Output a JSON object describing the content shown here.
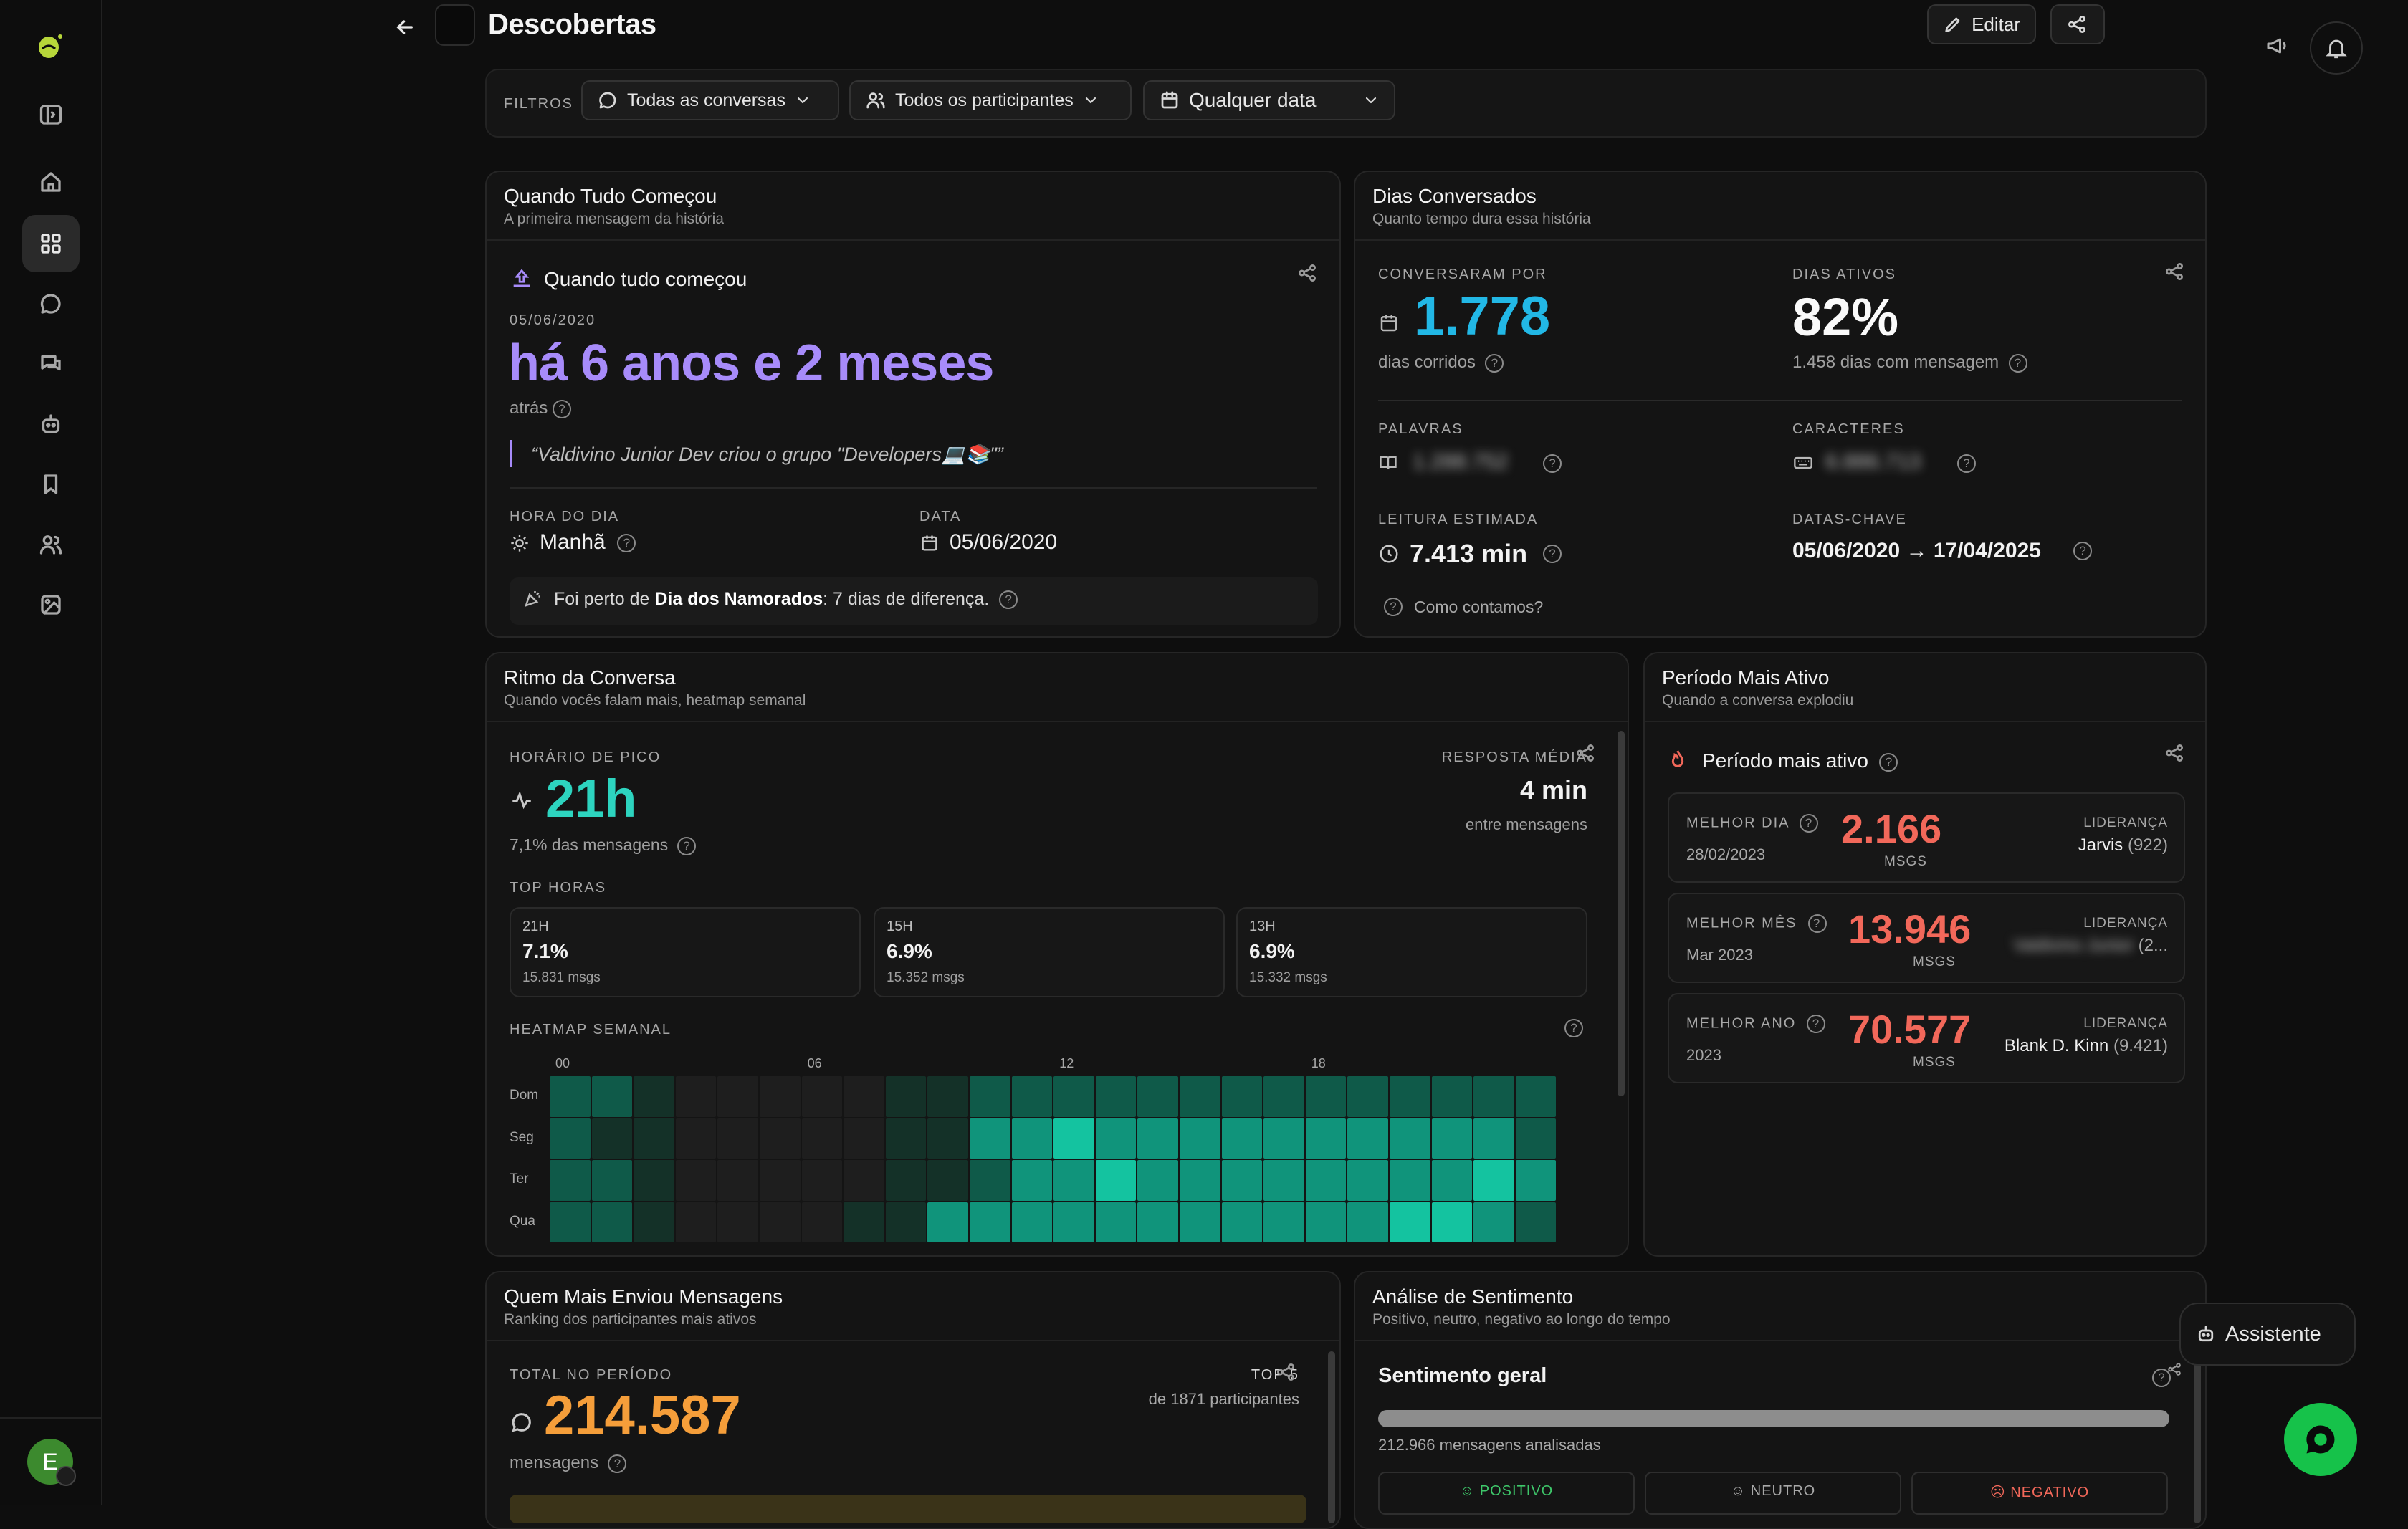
{
  "page": {
    "title": "Descobertas",
    "edit_label": "Editar"
  },
  "filters": {
    "label": "FILTROS",
    "conversations": "Todas as conversas",
    "participants": "Todos os participantes",
    "date": "Qualquer data"
  },
  "sidebar": {
    "avatar_letter": "E"
  },
  "assistant": {
    "label": "Assistente"
  },
  "first": {
    "title": "Quando Tudo Começou",
    "subtitle": "A primeira mensagem da história",
    "heading": "Quando tudo começou",
    "date": "05/06/2020",
    "ago": "há 6 anos e 2 meses",
    "ago_suffix": "atrás",
    "quote": "“Valdivino Junior Dev criou o grupo \"Developers💻📚\"”",
    "hour_label": "HORA DO DIA",
    "hour_value": "Manhã",
    "date_label": "DATA",
    "date_value": "05/06/2020",
    "note_prefix": "Foi perto de ",
    "note_bold": "Dia dos Namorados",
    "note_suffix": ": 7 dias de diferença."
  },
  "days": {
    "title": "Dias Conversados",
    "subtitle": "Quanto tempo dura essa história",
    "talked_label": "CONVERSARAM POR",
    "talked_value": "1.778",
    "talked_unit": "dias corridos",
    "active_label": "DIAS ATIVOS",
    "active_value": "82%",
    "active_sub": "1.458 dias com mensagem",
    "words_label": "PALAVRAS",
    "words_value": "1.288.752",
    "chars_label": "CARACTERES",
    "chars_value": "6.886.713",
    "reading_label": "LEITURA ESTIMADA",
    "reading_value": "7.413 min",
    "keydates_label": "DATAS-CHAVE",
    "keydates_value": "05/06/2020 → 17/04/2025",
    "how": "Como contamos?"
  },
  "rhythm": {
    "title": "Ritmo da Conversa",
    "subtitle": "Quando vocês falam mais, heatmap semanal",
    "peak_label": "HORÁRIO DE PICO",
    "peak_value": "21h",
    "peak_sub": "7,1% das mensagens",
    "avg_label": "RESPOSTA MÉDIA",
    "avg_value": "4 min",
    "avg_sub": "entre mensagens",
    "top_label": "TOP HORAS",
    "top_hours": [
      {
        "hour": "21H",
        "pct": "7.1%",
        "msgs": "15.831 msgs"
      },
      {
        "hour": "15H",
        "pct": "6.9%",
        "msgs": "15.352 msgs"
      },
      {
        "hour": "13H",
        "pct": "6.9%",
        "msgs": "15.332 msgs"
      }
    ],
    "heatmap_label": "HEATMAP SEMANAL",
    "hour_ticks": [
      "00",
      "06",
      "12",
      "18"
    ],
    "days": [
      "Dom",
      "Seg",
      "Ter",
      "Qua"
    ],
    "heat_levels": [
      [
        2,
        2,
        1,
        0,
        0,
        0,
        0,
        0,
        1,
        1,
        2,
        2,
        2,
        2,
        2,
        2,
        2,
        2,
        2,
        2,
        2,
        2,
        2,
        2
      ],
      [
        2,
        1,
        1,
        0,
        0,
        0,
        0,
        0,
        1,
        1,
        3,
        3,
        4,
        3,
        3,
        3,
        3,
        3,
        3,
        3,
        3,
        3,
        3,
        2
      ],
      [
        2,
        2,
        1,
        0,
        0,
        0,
        0,
        0,
        1,
        1,
        2,
        3,
        3,
        4,
        3,
        3,
        3,
        3,
        3,
        3,
        3,
        3,
        4,
        3
      ],
      [
        2,
        2,
        1,
        0,
        0,
        0,
        0,
        1,
        1,
        3,
        3,
        3,
        3,
        3,
        3,
        3,
        3,
        3,
        3,
        3,
        4,
        4,
        3,
        2
      ]
    ],
    "heat_colors": [
      "#1e1e1e",
      "#143128",
      "#0f5a49",
      "#10947b",
      "#14c3a0"
    ]
  },
  "active": {
    "title": "Período Mais Ativo",
    "subtitle": "Quando a conversa explodiu",
    "heading": "Período mais ativo",
    "rows": [
      {
        "label": "MELHOR DIA",
        "period": "28/02/2023",
        "value": "2.166",
        "unit": "MSGS",
        "lead_label": "LIDERANÇA",
        "leader": "Jarvis",
        "count": "(922)"
      },
      {
        "label": "MELHOR MÊS",
        "period": "Mar 2023",
        "value": "13.946",
        "unit": "MSGS",
        "lead_label": "LIDERANÇA",
        "leader": "Valdivino Junior",
        "count": "(2..."
      },
      {
        "label": "MELHOR ANO",
        "period": "2023",
        "value": "70.577",
        "unit": "MSGS",
        "lead_label": "LIDERANÇA",
        "leader": "Blank D. Kinn",
        "count": "(9.421)"
      }
    ]
  },
  "senders": {
    "title": "Quem Mais Enviou Mensagens",
    "subtitle": "Ranking dos participantes mais ativos",
    "total_label": "TOTAL NO PERÍODO",
    "total_value": "214.587",
    "total_unit": "mensagens",
    "top_label": "TOP 5",
    "top_sub": "de 1871 participantes"
  },
  "sentiment": {
    "title": "Análise de Sentimento",
    "subtitle": "Positivo, neutro, negativo ao longo do tempo",
    "heading": "Sentimento geral",
    "analyzed": "212.966 mensagens analisadas",
    "positive": "POSITIVO",
    "neutral": "NEUTRO",
    "negative": "NEGATIVO"
  },
  "colors": {
    "accent_purple": "#a78bfa",
    "accent_cyan": "#22b8e6",
    "accent_teal": "#2dd4bf",
    "accent_red": "#f2685a",
    "accent_orange": "#f59e3a",
    "fab_green": "#16c24a"
  }
}
